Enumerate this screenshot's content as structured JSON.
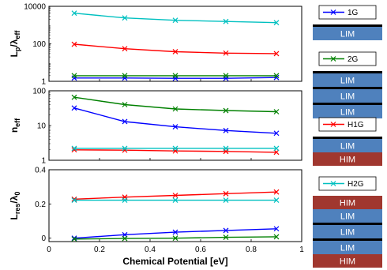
{
  "chart_data": [
    {
      "type": "line",
      "panel": "top",
      "ylabel_main": "L",
      "ylabel_sub1": "p",
      "ylabel_mid": "/λ",
      "ylabel_sub2": "eff",
      "y_scale": "log",
      "ylim": [
        1,
        10000
      ],
      "yticks": [
        1,
        100,
        10000
      ],
      "ytick_labels": [
        "1",
        "100",
        "10000"
      ],
      "xlim": [
        0,
        1
      ],
      "x": [
        0.1,
        0.3,
        0.5,
        0.7,
        0.9
      ],
      "series": [
        {
          "name": "1G",
          "color": "#0000ff",
          "values": [
            1.5,
            1.5,
            1.45,
            1.45,
            1.6
          ]
        },
        {
          "name": "2G",
          "color": "#008000",
          "values": [
            2.0,
            2.0,
            2.0,
            2.0,
            2.0
          ]
        },
        {
          "name": "H1G",
          "color": "#ff0000",
          "values": [
            95,
            55,
            38,
            32,
            30
          ]
        },
        {
          "name": "H2G",
          "color": "#00c0c0",
          "values": [
            4300,
            2400,
            1800,
            1550,
            1350
          ]
        }
      ]
    },
    {
      "type": "line",
      "panel": "middle",
      "ylabel_main": "n",
      "ylabel_sub1": "eff",
      "y_scale": "log",
      "ylim": [
        1,
        100
      ],
      "yticks": [
        1,
        10,
        100
      ],
      "ytick_labels": [
        "1",
        "10",
        "100"
      ],
      "xlim": [
        0,
        1
      ],
      "x": [
        0.1,
        0.3,
        0.5,
        0.7,
        0.9
      ],
      "series": [
        {
          "name": "1G",
          "color": "#0000ff",
          "values": [
            32,
            13,
            9.2,
            7.2,
            6.0
          ]
        },
        {
          "name": "2G",
          "color": "#008000",
          "values": [
            65,
            40,
            30,
            27,
            25
          ]
        },
        {
          "name": "H1G",
          "color": "#ff0000",
          "values": [
            2.0,
            1.95,
            1.85,
            1.8,
            1.7
          ]
        },
        {
          "name": "H2G",
          "color": "#00c0c0",
          "values": [
            2.2,
            2.2,
            2.2,
            2.2,
            2.2
          ]
        }
      ]
    },
    {
      "type": "line",
      "panel": "bottom",
      "ylabel_main": "L",
      "ylabel_sub1": "res",
      "ylabel_mid": "/λ",
      "ylabel_sub2": "0",
      "y_scale": "linear",
      "ylim": [
        -0.02,
        0.4
      ],
      "yticks": [
        0,
        0.2,
        0.4
      ],
      "ytick_labels": [
        "0",
        "0.2",
        "0.4"
      ],
      "xlim": [
        0,
        1
      ],
      "xticks": [
        0,
        0.2,
        0.4,
        0.6,
        0.8,
        1
      ],
      "xtick_labels": [
        "0",
        "0.2",
        "0.4",
        "0.6",
        "0.8",
        "1"
      ],
      "xlabel": "Chemical Potential [eV]",
      "x": [
        0.1,
        0.3,
        0.5,
        0.7,
        0.9
      ],
      "series": [
        {
          "name": "1G",
          "color": "#0000ff",
          "values": [
            0.0,
            0.02,
            0.035,
            0.045,
            0.055
          ]
        },
        {
          "name": "2G",
          "color": "#008000",
          "values": [
            -0.005,
            -0.002,
            0.0,
            0.005,
            0.008
          ]
        },
        {
          "name": "H1G",
          "color": "#ff0000",
          "values": [
            0.228,
            0.24,
            0.25,
            0.26,
            0.27
          ]
        },
        {
          "name": "H2G",
          "color": "#00c0c0",
          "values": [
            0.222,
            0.222,
            0.222,
            0.222,
            0.222
          ]
        }
      ]
    }
  ],
  "structures": [
    {
      "legend_label": "1G",
      "color": "#0000ff",
      "layers": [
        "LIM"
      ]
    },
    {
      "legend_label": "2G",
      "color": "#008000",
      "layers": [
        "LIM",
        "LIM",
        "LIM"
      ]
    },
    {
      "legend_label": "H1G",
      "color": "#ff0000",
      "layers": [
        "LIM",
        "HIM"
      ]
    },
    {
      "legend_label": "H2G",
      "color": "#00c0c0",
      "layers": [
        "HIM",
        "LIM",
        "LIM",
        "LIM",
        "HIM"
      ]
    }
  ],
  "colors": {
    "LIM": "#4f81bd",
    "HIM": "#a0372f",
    "graphene": "#000000"
  }
}
